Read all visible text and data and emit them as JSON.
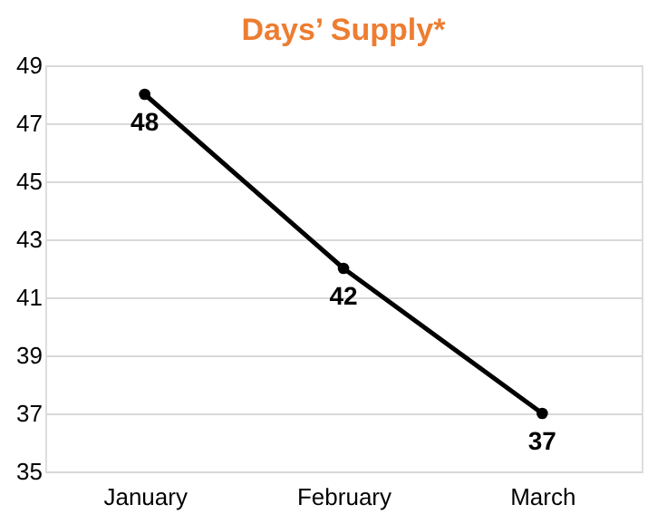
{
  "chart_data": {
    "type": "line",
    "title": "Days’ Supply*",
    "categories": [
      "January",
      "February",
      "March"
    ],
    "series": [
      {
        "color": "#000000",
        "values": [
          48,
          42,
          37
        ]
      }
    ],
    "ylim": [
      35,
      49
    ],
    "yticks": [
      35,
      37,
      39,
      41,
      43,
      45,
      47,
      49
    ],
    "grid": "y",
    "marker": "circle",
    "line_style": "solid",
    "data_labels": true,
    "legend": false
  }
}
